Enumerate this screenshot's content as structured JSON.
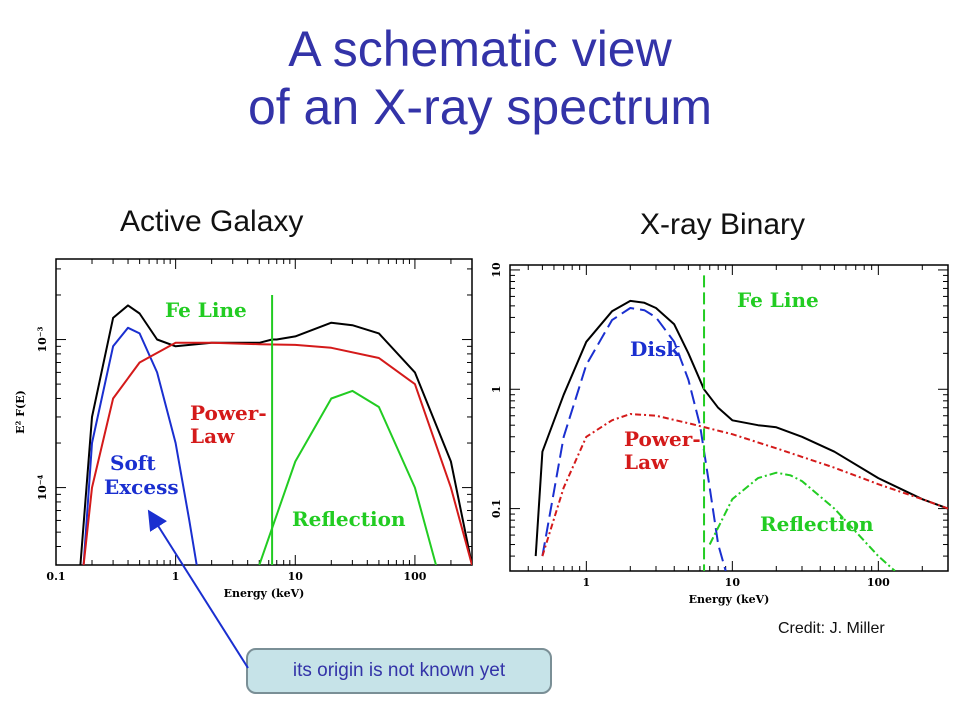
{
  "slide": {
    "title_line1": "A schematic view",
    "title_line2": "of an X-ray spectrum",
    "credit": "Credit: J. Miller",
    "callout": "its origin is not known yet"
  },
  "colors": {
    "title": "#3333a8",
    "total": "#000000",
    "disk_soft": "#1a2fd0",
    "power_law": "#d41a1a",
    "reflection_fe": "#22cc22"
  },
  "chart_data": [
    {
      "type": "line",
      "title": "Active Galaxy",
      "xlabel": "Energy (keV)",
      "ylabel": "E² F(E)",
      "xscale": "log",
      "yscale": "log",
      "xlim": [
        0.1,
        300
      ],
      "x_ticks": [
        "0.1",
        "1",
        "10",
        "100"
      ],
      "y_ticks": [
        "10⁻⁴",
        "10⁻³"
      ],
      "annotations": [
        "Fe Line",
        "Power-",
        "Law",
        "Soft",
        "Excess",
        "Reflection"
      ],
      "series": [
        {
          "name": "Total",
          "color": "#000000",
          "x": [
            0.16,
            0.2,
            0.3,
            0.4,
            0.5,
            0.7,
            1,
            2,
            5,
            6.4,
            7,
            10,
            20,
            30,
            50,
            100,
            200,
            300
          ],
          "y": [
            3e-05,
            0.0003,
            0.0014,
            0.0017,
            0.0015,
            0.001,
            0.0009,
            0.00095,
            0.00095,
            0.001,
            0.001,
            0.00105,
            0.0013,
            0.00125,
            0.0011,
            0.0006,
            0.00015,
            3e-05
          ]
        },
        {
          "name": "Soft Excess",
          "color": "#1a2fd0",
          "x": [
            0.17,
            0.2,
            0.3,
            0.4,
            0.5,
            0.7,
            1,
            1.3,
            1.5
          ],
          "y": [
            3e-05,
            0.0002,
            0.0009,
            0.0012,
            0.0011,
            0.0006,
            0.0002,
            6e-05,
            3e-05
          ]
        },
        {
          "name": "Power-Law",
          "color": "#d41a1a",
          "x": [
            0.17,
            0.2,
            0.3,
            0.5,
            1,
            2,
            5,
            10,
            20,
            50,
            100,
            200,
            300
          ],
          "y": [
            3e-05,
            0.0001,
            0.0004,
            0.0007,
            0.00095,
            0.00095,
            0.00093,
            0.00092,
            0.00088,
            0.00075,
            0.0005,
            0.0001,
            3e-05
          ]
        },
        {
          "name": "Reflection",
          "color": "#22cc22",
          "x": [
            5,
            10,
            20,
            30,
            50,
            100,
            150
          ],
          "y": [
            3e-05,
            0.00015,
            0.0004,
            0.00045,
            0.00035,
            0.0001,
            3e-05
          ]
        },
        {
          "name": "Fe Line",
          "color": "#22cc22",
          "x": [
            6.4
          ],
          "y": [
            0.002
          ]
        }
      ]
    },
    {
      "type": "line",
      "title": "X-ray Binary",
      "xlabel": "Energy (keV)",
      "ylabel": "E² F(E)",
      "xscale": "log",
      "yscale": "log",
      "xlim": [
        0.3,
        300
      ],
      "ylim": [
        0.03,
        10
      ],
      "x_ticks": [
        "1",
        "10",
        "100"
      ],
      "y_ticks": [
        "0.1",
        "1",
        "10"
      ],
      "annotations": [
        "Fe Line",
        "Disk",
        "Power-",
        "Law",
        "Reflection"
      ],
      "series": [
        {
          "name": "Total",
          "color": "#000000",
          "x": [
            0.45,
            0.5,
            0.7,
            1,
            1.5,
            2,
            2.5,
            3,
            4,
            5,
            6.4,
            8,
            10,
            15,
            20,
            30,
            50,
            100,
            200,
            300
          ],
          "y": [
            0.04,
            0.3,
            0.9,
            2.5,
            4.5,
            5.5,
            5.3,
            4.8,
            3.5,
            2.0,
            1.0,
            0.7,
            0.55,
            0.5,
            0.48,
            0.4,
            0.3,
            0.18,
            0.12,
            0.1
          ]
        },
        {
          "name": "Disk",
          "color": "#1a2fd0",
          "x": [
            0.5,
            0.7,
            1,
            1.5,
            2,
            2.5,
            3,
            4,
            5,
            6,
            7,
            8,
            9
          ],
          "y": [
            0.04,
            0.4,
            1.6,
            3.8,
            4.8,
            4.6,
            4.0,
            2.5,
            1.2,
            0.5,
            0.15,
            0.05,
            0.03
          ]
        },
        {
          "name": "Power-Law",
          "color": "#d41a1a",
          "x": [
            0.5,
            0.7,
            1,
            1.5,
            2,
            3,
            5,
            10,
            20,
            50,
            100,
            200,
            300
          ],
          "y": [
            0.04,
            0.15,
            0.4,
            0.55,
            0.62,
            0.6,
            0.52,
            0.42,
            0.32,
            0.22,
            0.16,
            0.12,
            0.1
          ]
        },
        {
          "name": "Reflection",
          "color": "#22cc22",
          "x": [
            7,
            10,
            15,
            20,
            25,
            30,
            50,
            100,
            130
          ],
          "y": [
            0.05,
            0.12,
            0.18,
            0.2,
            0.19,
            0.17,
            0.1,
            0.04,
            0.03
          ]
        },
        {
          "name": "Fe Line",
          "color": "#22cc22",
          "x": [
            6.4
          ],
          "y": [
            9
          ]
        }
      ]
    }
  ]
}
